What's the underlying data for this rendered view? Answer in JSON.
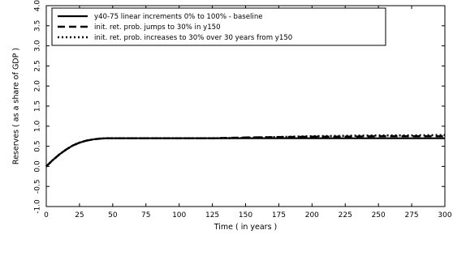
{
  "chart_data": {
    "type": "line",
    "xlabel": "Time    ( in years )",
    "ylabel": "Reserves    ( as a share of GDP )",
    "xlim": [
      0,
      300
    ],
    "ylim": [
      -1.0,
      4.0
    ],
    "x_ticks": [
      0,
      25,
      50,
      75,
      100,
      125,
      150,
      175,
      200,
      225,
      250,
      275,
      300
    ],
    "y_ticks": [
      -1.0,
      -0.5,
      0.0,
      0.5,
      1.0,
      1.5,
      2.0,
      2.5,
      3.0,
      3.5,
      4.0
    ],
    "y_tick_labels": [
      "-1.0",
      "-0.5",
      "0.0",
      "0.5",
      "1.0",
      "1.5",
      "2.0",
      "2.5",
      "3.0",
      "3.5",
      "4.0"
    ],
    "grid": false,
    "legend_position": "top-left",
    "colors": {
      "series": "#000000",
      "background": "#ffffff"
    },
    "series": [
      {
        "name": "y40-75 linear increments 0% to 100% - baseline",
        "style": "solid",
        "x": [
          0,
          5,
          10,
          15,
          20,
          25,
          30,
          35,
          40,
          45,
          50,
          60,
          75,
          100,
          125,
          150,
          175,
          200,
          225,
          250,
          275,
          300
        ],
        "values": [
          0.0,
          0.16,
          0.3,
          0.42,
          0.52,
          0.59,
          0.64,
          0.67,
          0.69,
          0.7,
          0.7,
          0.7,
          0.7,
          0.7,
          0.7,
          0.7,
          0.7,
          0.7,
          0.7,
          0.7,
          0.7,
          0.7
        ]
      },
      {
        "name": "init. ret. prob. jumps to 30% in y150",
        "style": "dashed",
        "x": [
          0,
          5,
          10,
          15,
          20,
          25,
          30,
          35,
          40,
          45,
          50,
          60,
          75,
          100,
          125,
          150,
          175,
          200,
          225,
          250,
          275,
          300
        ],
        "values": [
          0.0,
          0.16,
          0.3,
          0.42,
          0.52,
          0.59,
          0.64,
          0.67,
          0.69,
          0.7,
          0.7,
          0.7,
          0.7,
          0.7,
          0.7,
          0.72,
          0.73,
          0.74,
          0.74,
          0.75,
          0.75,
          0.75
        ]
      },
      {
        "name": "init. ret. prob. increases to 30% over 30 years from y150",
        "style": "dotted",
        "x": [
          0,
          5,
          10,
          15,
          20,
          25,
          30,
          35,
          40,
          45,
          50,
          60,
          75,
          100,
          125,
          150,
          175,
          200,
          225,
          250,
          275,
          300
        ],
        "values": [
          0.0,
          0.16,
          0.3,
          0.42,
          0.52,
          0.59,
          0.64,
          0.67,
          0.69,
          0.7,
          0.7,
          0.7,
          0.7,
          0.7,
          0.7,
          0.71,
          0.73,
          0.75,
          0.76,
          0.77,
          0.77,
          0.78
        ]
      }
    ]
  }
}
